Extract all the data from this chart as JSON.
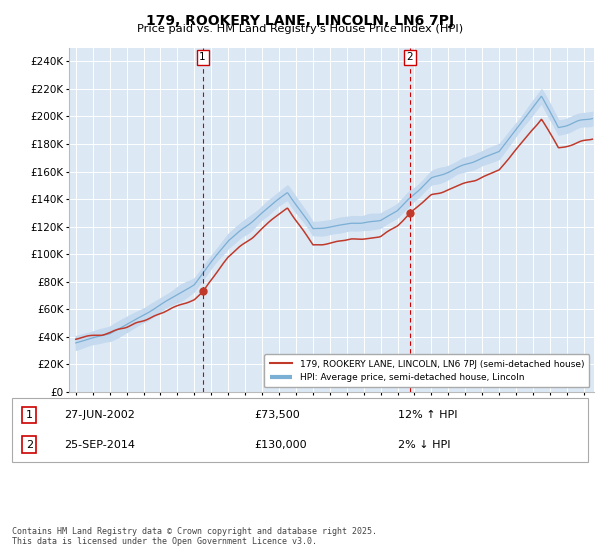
{
  "title": "179, ROOKERY LANE, LINCOLN, LN6 7PJ",
  "subtitle": "Price paid vs. HM Land Registry's House Price Index (HPI)",
  "ylim": [
    0,
    250000
  ],
  "yticks": [
    0,
    20000,
    40000,
    60000,
    80000,
    100000,
    120000,
    140000,
    160000,
    180000,
    200000,
    220000,
    240000
  ],
  "hpi_fill_color": "#c5d9ef",
  "hpi_line_color": "#7bafd4",
  "price_color": "#c0392b",
  "plot_bg": "#dce9f5",
  "grid_color": "#ffffff",
  "sale1_price": 73500,
  "sale2_price": 130000,
  "sale1_x": 2002.49,
  "sale2_x": 2014.73,
  "legend_label1": "179, ROOKERY LANE, LINCOLN, LN6 7PJ (semi-detached house)",
  "legend_label2": "HPI: Average price, semi-detached house, Lincoln",
  "sale1_date": "27-JUN-2002",
  "sale1_amount": "£73,500",
  "sale1_hpi": "12% ↑ HPI",
  "sale2_date": "25-SEP-2014",
  "sale2_amount": "£130,000",
  "sale2_hpi": "2% ↓ HPI",
  "footnote1": "Contains HM Land Registry data © Crown copyright and database right 2025.",
  "footnote2": "This data is licensed under the Open Government Licence v3.0."
}
